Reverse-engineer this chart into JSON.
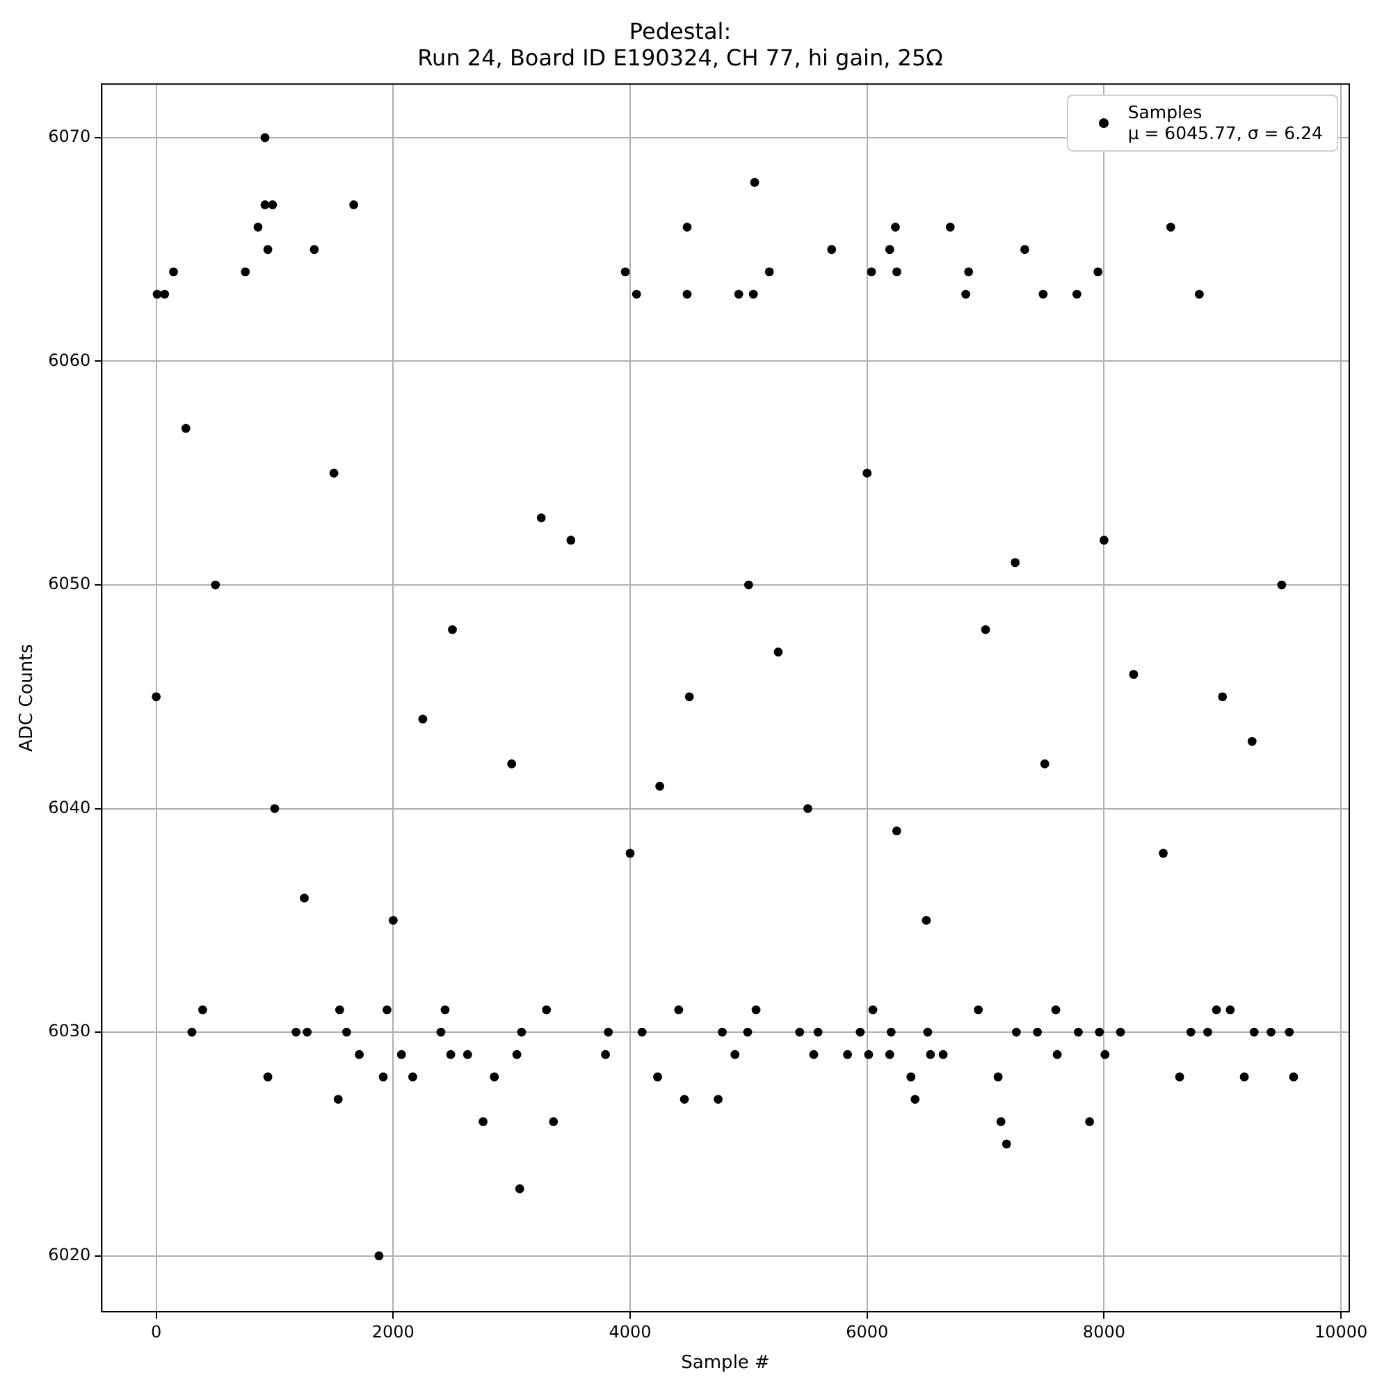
{
  "chart_data": {
    "type": "scatter",
    "title": "Pedestal:\nRun 24, Board ID E190324, CH 77, hi gain, 25Ω",
    "xlabel": "Sample #",
    "ylabel": "ADC Counts",
    "xlim": [
      -460,
      10070
    ],
    "ylim": [
      6017.5,
      6072.4
    ],
    "xticks": [
      0,
      2000,
      4000,
      6000,
      8000,
      10000
    ],
    "yticks": [
      6020,
      6030,
      6040,
      6050,
      6060,
      6070
    ],
    "grid": true,
    "legend": "top right",
    "marker": "circle",
    "series": [
      {
        "name": "Samples\nμ = 6045.77, σ = 6.24",
        "color": "#000000",
        "x": [
          918,
          918,
          982,
          859,
          942,
          1667,
          1334,
          752,
          146,
          4481,
          3959,
          4481,
          4054,
          8,
          71,
          5051,
          6239,
          6702,
          8563,
          5701,
          6191,
          7331,
          5175,
          6037,
          6251,
          6857,
          7949,
          4917,
          5040,
          6833,
          7486,
          7771,
          8804,
          1880,
          3068,
          2759,
          3353,
          1536,
          942,
          1916,
          2165,
          2854,
          4232,
          4458,
          4743,
          1714,
          2070,
          2486,
          2628,
          3044,
          3792,
          301,
          1180,
          1274,
          1607,
          2403,
          3084,
          3816,
          4101,
          4778,
          392,
          1548,
          1948,
          2438,
          3294,
          4410,
          7177,
          7130,
          7878,
          6405,
          6370,
          7106,
          8638,
          9184,
          9600,
          4885,
          5550,
          5835,
          6013,
          6191,
          6535,
          6642,
          7605,
          8008,
          4992,
          5431,
          5586,
          5942,
          6203,
          6512,
          7260,
          7438,
          7783,
          7961,
          8139,
          8733,
          8875,
          9267,
          9410,
          9564,
          5063,
          6049,
          6939,
          7593,
          8949,
          9065,
          0,
          500,
          1000,
          1500,
          2000,
          2500,
          3000,
          3500,
          4000,
          4500,
          5000,
          5500,
          6000,
          6500,
          7000,
          7500,
          8000,
          8500,
          9000,
          9500,
          250,
          1250,
          2250,
          3250,
          4250,
          5250,
          6250,
          7250,
          8250,
          9250
        ],
        "values": [
          6070,
          6067,
          6067,
          6066,
          6065,
          6067,
          6065,
          6064,
          6064,
          6066,
          6064,
          6063,
          6063,
          6063,
          6063,
          6068,
          6066,
          6066,
          6066,
          6065,
          6065,
          6065,
          6064,
          6064,
          6064,
          6064,
          6064,
          6063,
          6063,
          6063,
          6063,
          6063,
          6063,
          6020,
          6023,
          6026,
          6026,
          6027,
          6028,
          6028,
          6028,
          6028,
          6028,
          6027,
          6027,
          6029,
          6029,
          6029,
          6029,
          6029,
          6029,
          6030,
          6030,
          6030,
          6030,
          6030,
          6030,
          6030,
          6030,
          6030,
          6031,
          6031,
          6031,
          6031,
          6031,
          6031,
          6025,
          6026,
          6026,
          6027,
          6028,
          6028,
          6028,
          6028,
          6028,
          6029,
          6029,
          6029,
          6029,
          6029,
          6029,
          6029,
          6029,
          6029,
          6030,
          6030,
          6030,
          6030,
          6030,
          6030,
          6030,
          6030,
          6030,
          6030,
          6030,
          6030,
          6030,
          6030,
          6030,
          6030,
          6031,
          6031,
          6031,
          6031,
          6031,
          6031,
          6045,
          6050,
          6040,
          6055,
          6035,
          6048,
          6042,
          6052,
          6038,
          6045,
          6050,
          6040,
          6055,
          6035,
          6048,
          6042,
          6052,
          6038,
          6045,
          6050,
          6057,
          6036,
          6044,
          6053,
          6041,
          6047,
          6039,
          6051,
          6046,
          6043
        ]
      }
    ]
  }
}
